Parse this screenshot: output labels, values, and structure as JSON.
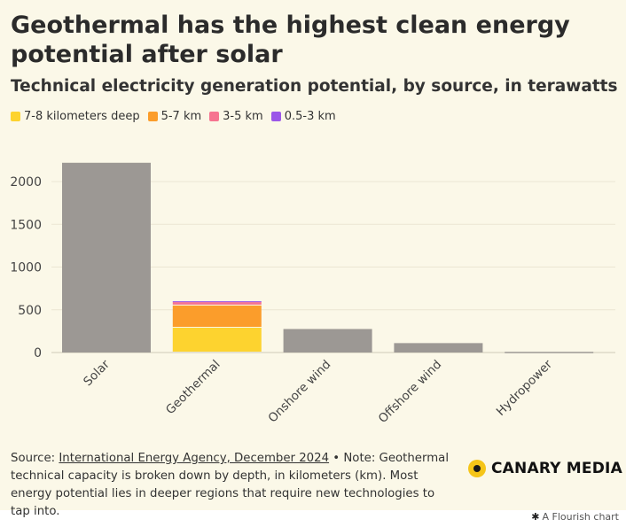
{
  "header": {
    "title": "Geothermal has the highest clean energy potential after solar",
    "subtitle": "Technical electricity generation potential, by source, in terawatts"
  },
  "legend": [
    {
      "label": "7-8 kilometers deep",
      "color": "#fdd32f"
    },
    {
      "label": "5-7 km",
      "color": "#fb9d2b"
    },
    {
      "label": "3-5 km",
      "color": "#f67490"
    },
    {
      "label": "0.5-3 km",
      "color": "#9b57e8"
    }
  ],
  "chart_data": {
    "type": "bar",
    "stacked": true,
    "title": "Geothermal has the highest clean energy potential after solar",
    "subtitle": "Technical electricity generation potential, by source, in terawatts",
    "categories": [
      "Solar",
      "Geothermal",
      "Onshore wind",
      "Offshore wind",
      "Hydropower"
    ],
    "totals": [
      2220,
      600,
      275,
      110,
      8
    ],
    "stacks": [
      {
        "name": "7-8 kilometers deep",
        "color": "#fdd32f",
        "values": [
          0,
          290,
          0,
          0,
          0
        ]
      },
      {
        "name": "5-7 km",
        "color": "#fb9d2b",
        "values": [
          0,
          260,
          0,
          0,
          0
        ]
      },
      {
        "name": "3-5 km",
        "color": "#f67490",
        "values": [
          0,
          40,
          0,
          0,
          0
        ]
      },
      {
        "name": "0.5-3 km",
        "color": "#9b57e8",
        "values": [
          0,
          10,
          0,
          0,
          0
        ]
      }
    ],
    "base_color": "#9c9894",
    "ylim": [
      0,
      2400
    ],
    "yticks": [
      0,
      500,
      1000,
      1500,
      2000
    ],
    "ytick_labels": [
      "0",
      "500",
      "1000",
      "1500",
      "2000"
    ],
    "xlabel": "",
    "ylabel": "",
    "grid": true,
    "legend_position": "top-left"
  },
  "footer": {
    "source_prefix": "Source: ",
    "source_link": "International Energy Agency, December 2024",
    "note": " • Note: Geothermal technical capacity is broken down by depth, in kilometers (km). Most energy potential lies in deeper regions that require new technologies to tap into.",
    "brand": "CANARY MEDIA",
    "credit": "A Flourish chart"
  }
}
